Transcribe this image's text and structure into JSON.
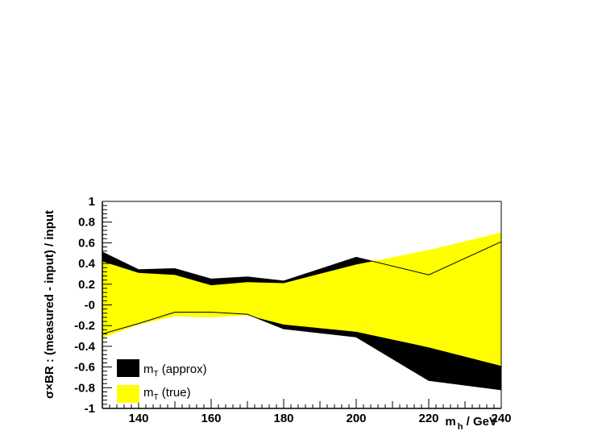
{
  "chart_data": {
    "type": "area",
    "title": "",
    "xlabel": {
      "main": "m",
      "sub": "h",
      "rest": " / GeV"
    },
    "ylabel": "σ×BR : (measured - input) / input",
    "xlim": [
      130,
      240
    ],
    "ylim": [
      -1,
      1
    ],
    "x_ticks": [
      140,
      160,
      180,
      200,
      220,
      240
    ],
    "y_ticks": [
      -1,
      -0.8,
      -0.6,
      -0.4,
      -0.2,
      0,
      0.2,
      0.4,
      0.6,
      0.8,
      1
    ],
    "y_tick_labels": [
      "-1",
      "-0.8",
      "-0.6",
      "-0.4",
      "-0.2",
      "-0",
      "0.2",
      "0.4",
      "0.6",
      "0.8",
      "1"
    ],
    "grid": false,
    "legend_position": "bottom-left",
    "series": [
      {
        "name_main": "m",
        "name_sub": "T",
        "name_rest": " (approx)",
        "color": "#000000",
        "x": [
          130,
          140,
          150,
          160,
          170,
          180,
          200,
          220,
          240
        ],
        "upper": [
          0.51,
          0.34,
          0.35,
          0.25,
          0.27,
          0.23,
          0.46,
          0.29,
          0.61
        ],
        "lower": [
          -0.28,
          -0.18,
          -0.07,
          -0.07,
          -0.09,
          -0.23,
          -0.31,
          -0.73,
          -0.82
        ]
      },
      {
        "name_main": "m",
        "name_sub": "T",
        "name_rest": " (true)",
        "color": "#ffff00",
        "x": [
          130,
          140,
          150,
          160,
          170,
          180,
          200,
          220,
          240
        ],
        "upper": [
          0.42,
          0.31,
          0.29,
          0.19,
          0.22,
          0.21,
          0.39,
          0.53,
          0.7
        ],
        "lower": [
          -0.32,
          -0.19,
          -0.11,
          -0.12,
          -0.1,
          -0.19,
          -0.26,
          -0.41,
          -0.59
        ]
      }
    ]
  }
}
